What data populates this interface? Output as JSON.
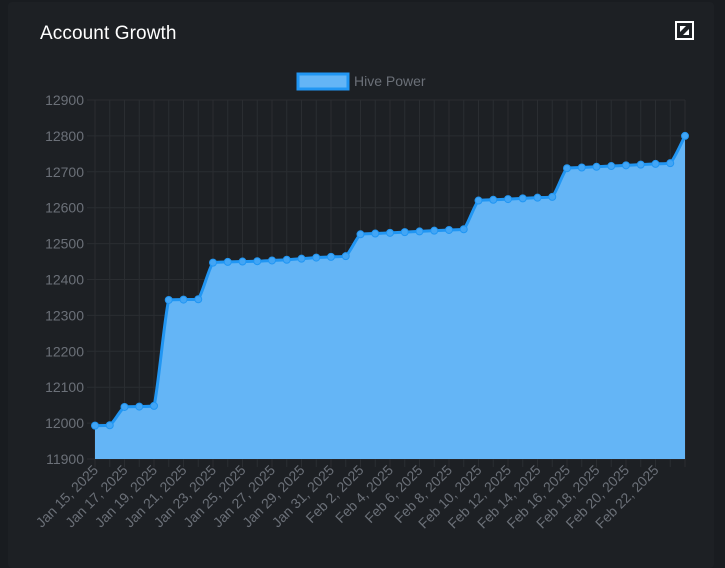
{
  "header": {
    "title": "Account Growth",
    "expand_icon": "expand-icon"
  },
  "colors": {
    "fill": "#64b5f6",
    "line": "#2196f3",
    "point": "#42a5f5",
    "grid": "#2a2d31",
    "tick": "#6b7078"
  },
  "chart_data": {
    "type": "area",
    "title": "Account Growth",
    "xlabel": "",
    "ylabel": "",
    "ylim": [
      11900,
      12900
    ],
    "yticks": [
      11900,
      12000,
      12100,
      12200,
      12300,
      12400,
      12500,
      12600,
      12700,
      12800,
      12900
    ],
    "legend": {
      "position": "top-center",
      "entries": [
        "Hive Power"
      ]
    },
    "grid": true,
    "x_tick_labels": [
      "Jan 15, 2025",
      "Jan 17, 2025",
      "Jan 19, 2025",
      "Jan 21, 2025",
      "Jan 23, 2025",
      "Jan 25, 2025",
      "Jan 27, 2025",
      "Jan 29, 2025",
      "Jan 31, 2025",
      "Feb 2, 2025",
      "Feb 4, 2025",
      "Feb 6, 2025",
      "Feb 8, 2025",
      "Feb 10, 2025",
      "Feb 12, 2025",
      "Feb 14, 2025",
      "Feb 16, 2025",
      "Feb 18, 2025",
      "Feb 20, 2025",
      "Feb 22, 2025"
    ],
    "series": [
      {
        "name": "Hive Power",
        "values": [
          11993,
          11994,
          12045,
          12046,
          12048,
          12343,
          12344,
          12345,
          12447,
          12449,
          12450,
          12451,
          12453,
          12455,
          12458,
          12461,
          12463,
          12465,
          12526,
          12528,
          12530,
          12532,
          12534,
          12536,
          12538,
          12540,
          12620,
          12622,
          12624,
          12626,
          12628,
          12630,
          12710,
          12712,
          12714,
          12716,
          12718,
          12720,
          12722,
          12724,
          12800
        ]
      }
    ]
  }
}
